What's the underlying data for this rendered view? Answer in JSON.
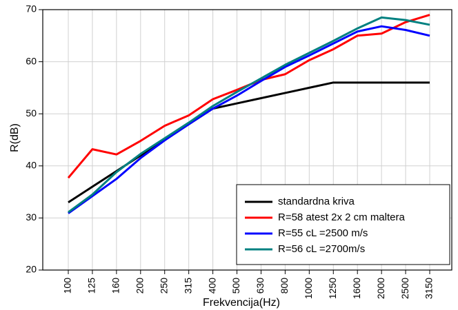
{
  "chart_data": {
    "type": "line",
    "x_label": "Frekvencija(Hz)",
    "y_label": "R(dB)",
    "categories": [
      "100",
      "125",
      "160",
      "200",
      "250",
      "315",
      "400",
      "500",
      "630",
      "800",
      "1000",
      "1250",
      "1600",
      "2000",
      "2500",
      "3150"
    ],
    "ylim": [
      20,
      70
    ],
    "yticks": [
      20,
      30,
      40,
      50,
      60,
      70
    ],
    "grid": true,
    "legend": "lower right",
    "series": [
      {
        "name": "standardna kriva",
        "color": "#000000",
        "values": [
          33,
          36,
          39,
          42,
          45,
          48,
          51,
          52,
          53,
          54,
          55,
          56,
          56,
          56,
          56,
          56
        ]
      },
      {
        "name": "R=58 atest 2x 2 cm maltera",
        "color": "#ff0000",
        "values": [
          37.7,
          43.2,
          42.2,
          44.8,
          47.7,
          49.7,
          52.8,
          54.6,
          56.5,
          57.6,
          60.3,
          62.4,
          65,
          65.4,
          67.6,
          69
        ]
      },
      {
        "name": "R=55 cL =2500 m/s",
        "color": "#0000ff",
        "values": [
          30.9,
          34.2,
          37.5,
          41.5,
          44.9,
          48,
          51,
          53.5,
          56.3,
          59,
          61.2,
          63.5,
          65.8,
          66.8,
          66.1,
          65
        ]
      },
      {
        "name": "R=56 cL =2700m/s",
        "color": "#008080",
        "values": [
          31.1,
          34.5,
          38.8,
          42.3,
          45.3,
          48.3,
          51.5,
          54.2,
          56.8,
          59.4,
          61.7,
          64,
          66.4,
          68.5,
          68,
          67.1
        ]
      }
    ]
  }
}
